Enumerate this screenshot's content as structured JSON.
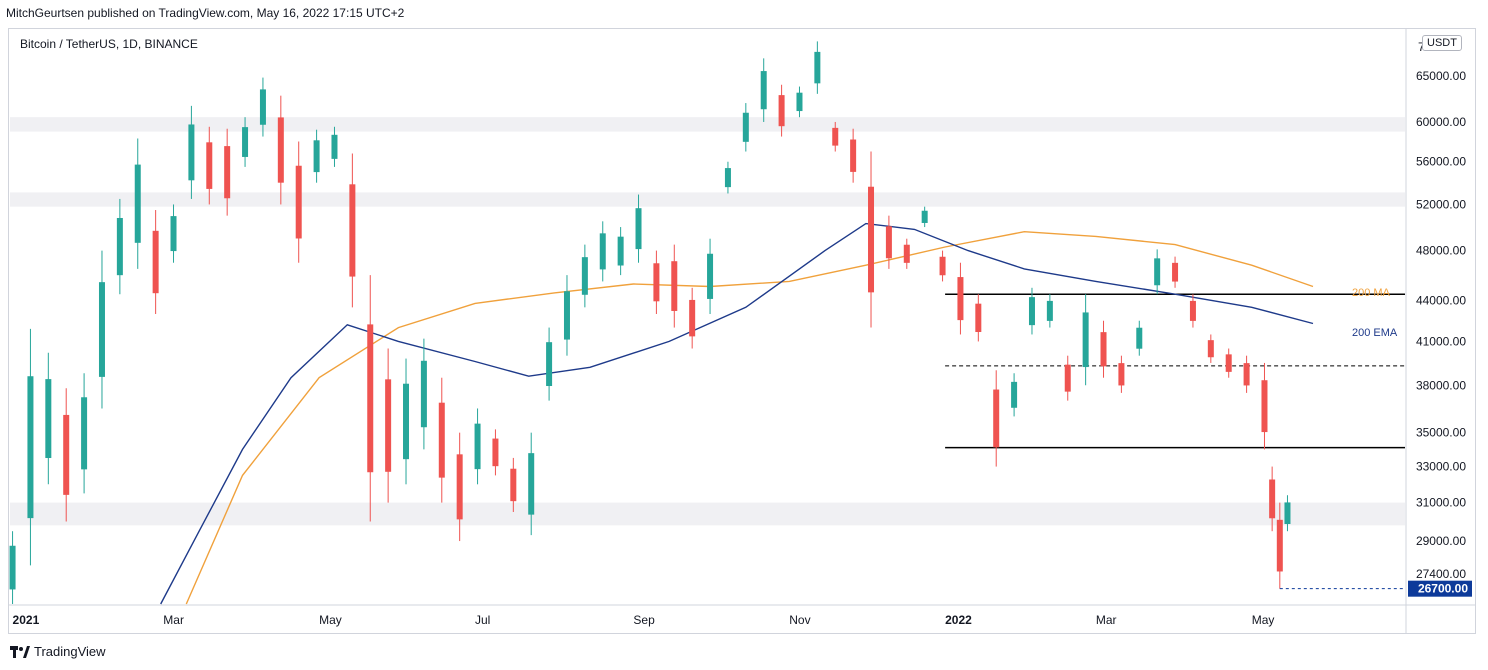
{
  "publisher_line": "MitchGeurtsen published on TradingView.com, May 16, 2022 17:15 UTC+2",
  "symbol_line": "Bitcoin / TetherUS, 1D, BINANCE",
  "currency_button": "USDT",
  "brand": "TradingView",
  "colors": {
    "up": "#26a69a",
    "down": "#ef5350",
    "ema": "#1e3a8a",
    "ma": "#f0a13c",
    "zone": "#f0f0f3",
    "hline": "#000000",
    "price_tag": "#0d3a9a"
  },
  "chart_data": {
    "type": "candlestick",
    "title": "Bitcoin / TetherUS, 1D, BINANCE",
    "y_ticks": [
      27400,
      29000,
      31000,
      33000,
      35000,
      38000,
      41000,
      44000,
      48000,
      52000,
      56000,
      60000,
      65000
    ],
    "y_tick_labels": [
      "27400.00",
      "29000.00",
      "31000.00",
      "33000.00",
      "35000.00",
      "38000.00",
      "41000.00",
      "44000.00",
      "48000.00",
      "52000.00",
      "56000.00",
      "60000.00",
      "65000.00"
    ],
    "y_top_partial_label": "7",
    "x_ticks": [
      {
        "label": "2021",
        "date": "2021-01-01",
        "bold": true
      },
      {
        "label": "Mar",
        "date": "2021-03-01",
        "bold": false
      },
      {
        "label": "May",
        "date": "2021-05-01",
        "bold": false
      },
      {
        "label": "Jul",
        "date": "2021-07-01",
        "bold": false
      },
      {
        "label": "Sep",
        "date": "2021-09-01",
        "bold": false
      },
      {
        "label": "Nov",
        "date": "2021-11-01",
        "bold": false
      },
      {
        "label": "2022",
        "date": "2022-01-01",
        "bold": true
      },
      {
        "label": "Mar",
        "date": "2022-03-01",
        "bold": false
      },
      {
        "label": "May",
        "date": "2022-05-01",
        "bold": false
      }
    ],
    "ylim": [
      26000,
      70500
    ],
    "xlim": [
      "2020-12-31",
      "2022-06-30"
    ],
    "scale": "log",
    "current_price_label": "26700.00",
    "current_price": 26700,
    "zones": [
      {
        "y_from": 59000,
        "y_to": 60500
      },
      {
        "y_from": 51800,
        "y_to": 53100
      },
      {
        "y_from": 29800,
        "y_to": 31000
      }
    ],
    "horizontal_lines": [
      {
        "y": 44500,
        "from": "2022-01-01",
        "to": "2022-06-30",
        "style": "solid"
      },
      {
        "y": 39300,
        "from": "2022-01-01",
        "to": "2022-06-30",
        "style": "dashed"
      },
      {
        "y": 34100,
        "from": "2022-01-01",
        "to": "2022-06-30",
        "style": "solid"
      }
    ],
    "indicators": [
      {
        "name": "200 MA",
        "color": "#f0a13c",
        "points": [
          [
            "2021-03-10",
            26000
          ],
          [
            "2021-04-01",
            32500
          ],
          [
            "2021-05-01",
            38500
          ],
          [
            "2021-06-01",
            42000
          ],
          [
            "2021-07-01",
            43800
          ],
          [
            "2021-08-01",
            44600
          ],
          [
            "2021-09-01",
            45300
          ],
          [
            "2021-10-01",
            45100
          ],
          [
            "2021-11-01",
            45500
          ],
          [
            "2021-12-01",
            46800
          ],
          [
            "2022-01-01",
            48300
          ],
          [
            "2022-02-01",
            49600
          ],
          [
            "2022-03-01",
            49200
          ],
          [
            "2022-04-01",
            48500
          ],
          [
            "2022-05-01",
            46800
          ],
          [
            "2022-05-25",
            45100
          ]
        ]
      },
      {
        "name": "200 EMA",
        "color": "#1e3a8a",
        "points": [
          [
            "2021-02-28",
            26000
          ],
          [
            "2021-03-15",
            29500
          ],
          [
            "2021-04-01",
            34000
          ],
          [
            "2021-04-20",
            38500
          ],
          [
            "2021-05-12",
            42200
          ],
          [
            "2021-06-01",
            41000
          ],
          [
            "2021-07-01",
            39600
          ],
          [
            "2021-07-22",
            38600
          ],
          [
            "2021-08-15",
            39200
          ],
          [
            "2021-09-15",
            41000
          ],
          [
            "2021-10-15",
            43500
          ],
          [
            "2021-11-15",
            48000
          ],
          [
            "2021-12-01",
            50300
          ],
          [
            "2021-12-20",
            49800
          ],
          [
            "2022-01-10",
            48000
          ],
          [
            "2022-02-01",
            46500
          ],
          [
            "2022-03-01",
            45500
          ],
          [
            "2022-04-01",
            44500
          ],
          [
            "2022-05-01",
            43500
          ],
          [
            "2022-05-25",
            42300
          ]
        ]
      }
    ],
    "candles": [
      [
        "2021-01-01",
        26000,
        29500
      ],
      [
        "2021-01-08",
        27800,
        41900
      ],
      [
        "2021-01-15",
        32000,
        40200
      ],
      [
        "2021-01-22",
        30000,
        37800
      ],
      [
        "2021-01-29",
        31500,
        38800
      ],
      [
        "2021-02-05",
        36500,
        48000
      ],
      [
        "2021-02-12",
        44500,
        52500
      ],
      [
        "2021-02-19",
        46500,
        58300
      ],
      [
        "2021-02-26",
        43000,
        51500
      ],
      [
        "2021-03-05",
        47000,
        52000
      ],
      [
        "2021-03-12",
        52500,
        61700
      ],
      [
        "2021-03-19",
        52000,
        59500
      ],
      [
        "2021-03-26",
        51000,
        59300
      ],
      [
        "2021-04-02",
        55500,
        60500
      ],
      [
        "2021-04-09",
        58500,
        64800
      ],
      [
        "2021-04-16",
        52000,
        62800
      ],
      [
        "2021-04-23",
        47000,
        58000
      ],
      [
        "2021-04-30",
        54000,
        59200
      ],
      [
        "2021-05-07",
        55500,
        59500
      ],
      [
        "2021-05-14",
        43500,
        56800
      ],
      [
        "2021-05-21",
        30000,
        46000
      ],
      [
        "2021-05-28",
        31000,
        40500
      ],
      [
        "2021-06-04",
        32000,
        39800
      ],
      [
        "2021-06-11",
        34000,
        41200
      ],
      [
        "2021-06-18",
        31000,
        38500
      ],
      [
        "2021-06-25",
        29000,
        35000
      ],
      [
        "2021-07-02",
        32000,
        36500
      ],
      [
        "2021-07-09",
        32500,
        35200
      ],
      [
        "2021-07-16",
        30500,
        33500
      ],
      [
        "2021-07-23",
        29300,
        35000
      ],
      [
        "2021-07-30",
        37000,
        42000
      ],
      [
        "2021-08-06",
        40000,
        46000
      ],
      [
        "2021-08-13",
        43500,
        48500
      ],
      [
        "2021-08-20",
        45500,
        50500
      ],
      [
        "2021-08-27",
        46000,
        50000
      ],
      [
        "2021-09-03",
        47000,
        52900
      ],
      [
        "2021-09-10",
        43000,
        48000
      ],
      [
        "2021-09-17",
        42000,
        48500
      ],
      [
        "2021-09-24",
        40500,
        45000
      ],
      [
        "2021-10-01",
        43000,
        49000
      ],
      [
        "2021-10-08",
        53000,
        56000
      ],
      [
        "2021-10-15",
        57000,
        62000
      ],
      [
        "2021-10-22",
        60000,
        67000
      ],
      [
        "2021-10-29",
        58500,
        64000
      ],
      [
        "2021-11-05",
        60500,
        63800
      ],
      [
        "2021-11-12",
        63000,
        69000
      ],
      [
        "2021-11-19",
        57000,
        60000
      ],
      [
        "2021-11-26",
        54000,
        59300
      ],
      [
        "2021-12-03",
        42000,
        57000
      ],
      [
        "2021-12-10",
        46500,
        51000
      ],
      [
        "2021-12-17",
        46500,
        49000
      ],
      [
        "2021-12-24",
        50000,
        51800
      ],
      [
        "2021-12-31",
        45500,
        48000
      ],
      [
        "2022-01-07",
        41500,
        47000
      ],
      [
        "2022-01-14",
        41000,
        44500
      ],
      [
        "2022-01-21",
        33000,
        39000
      ],
      [
        "2022-01-28",
        36000,
        38800
      ],
      [
        "2022-02-04",
        41500,
        45000
      ],
      [
        "2022-02-11",
        42000,
        44500
      ],
      [
        "2022-02-18",
        37000,
        40000
      ],
      [
        "2022-02-25",
        38000,
        44500
      ],
      [
        "2022-03-04",
        38500,
        42500
      ],
      [
        "2022-03-11",
        37500,
        40000
      ],
      [
        "2022-03-18",
        40000,
        42500
      ],
      [
        "2022-03-25",
        44500,
        48100
      ],
      [
        "2022-04-01",
        45000,
        47500
      ],
      [
        "2022-04-08",
        42000,
        44500
      ],
      [
        "2022-04-15",
        39500,
        41500
      ],
      [
        "2022-04-22",
        38500,
        40500
      ],
      [
        "2022-04-29",
        37500,
        40000
      ],
      [
        "2022-05-06",
        34000,
        39500
      ],
      [
        "2022-05-09",
        29500,
        33000
      ],
      [
        "2022-05-12",
        26700,
        31000
      ],
      [
        "2022-05-15",
        29500,
        31400
      ]
    ]
  },
  "labels": {
    "ma": "200 MA",
    "ema": "200 EMA"
  }
}
